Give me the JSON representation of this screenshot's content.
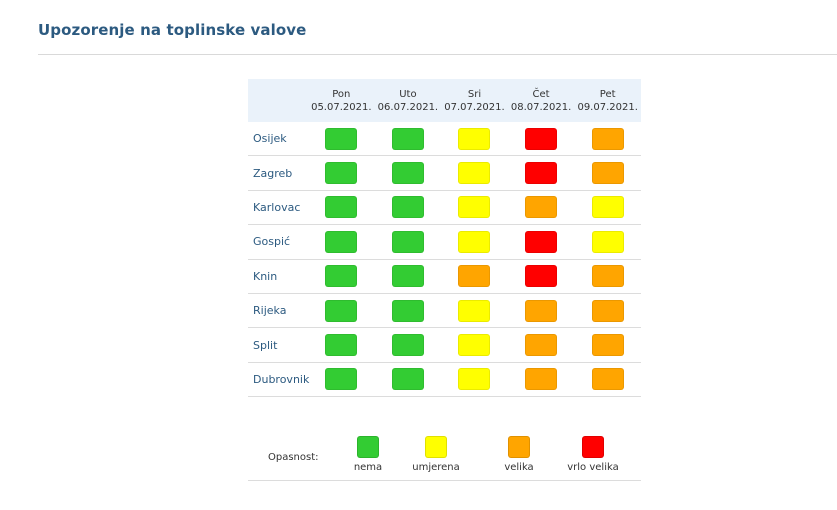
{
  "header": {
    "title": "Upozorenje na toplinske valove"
  },
  "levels": {
    "green": "#33cc33",
    "yellow": "#ffff00",
    "orange": "#ffa500",
    "red": "#ff0000"
  },
  "days": [
    {
      "name": "Pon",
      "date": "05.07.2021."
    },
    {
      "name": "Uto",
      "date": "06.07.2021."
    },
    {
      "name": "Sri",
      "date": "07.07.2021."
    },
    {
      "name": "Čet",
      "date": "08.07.2021."
    },
    {
      "name": "Pet",
      "date": "09.07.2021."
    }
  ],
  "rows": [
    {
      "city": "Osijek",
      "levels": [
        "green",
        "green",
        "yellow",
        "red",
        "orange"
      ]
    },
    {
      "city": "Zagreb",
      "levels": [
        "green",
        "green",
        "yellow",
        "red",
        "orange"
      ]
    },
    {
      "city": "Karlovac",
      "levels": [
        "green",
        "green",
        "yellow",
        "orange",
        "yellow"
      ]
    },
    {
      "city": "Gospić",
      "levels": [
        "green",
        "green",
        "yellow",
        "red",
        "yellow"
      ]
    },
    {
      "city": "Knin",
      "levels": [
        "green",
        "green",
        "orange",
        "red",
        "orange"
      ]
    },
    {
      "city": "Rijeka",
      "levels": [
        "green",
        "green",
        "yellow",
        "orange",
        "orange"
      ]
    },
    {
      "city": "Split",
      "levels": [
        "green",
        "green",
        "yellow",
        "orange",
        "orange"
      ]
    },
    {
      "city": "Dubrovnik",
      "levels": [
        "green",
        "green",
        "yellow",
        "orange",
        "orange"
      ]
    }
  ],
  "legend": {
    "label": "Opasnost:",
    "items": [
      {
        "level": "green",
        "text": "nema"
      },
      {
        "level": "yellow",
        "text": "umjerena"
      },
      {
        "level": "orange",
        "text": "velika"
      },
      {
        "level": "red",
        "text": "vrlo velika"
      }
    ]
  }
}
